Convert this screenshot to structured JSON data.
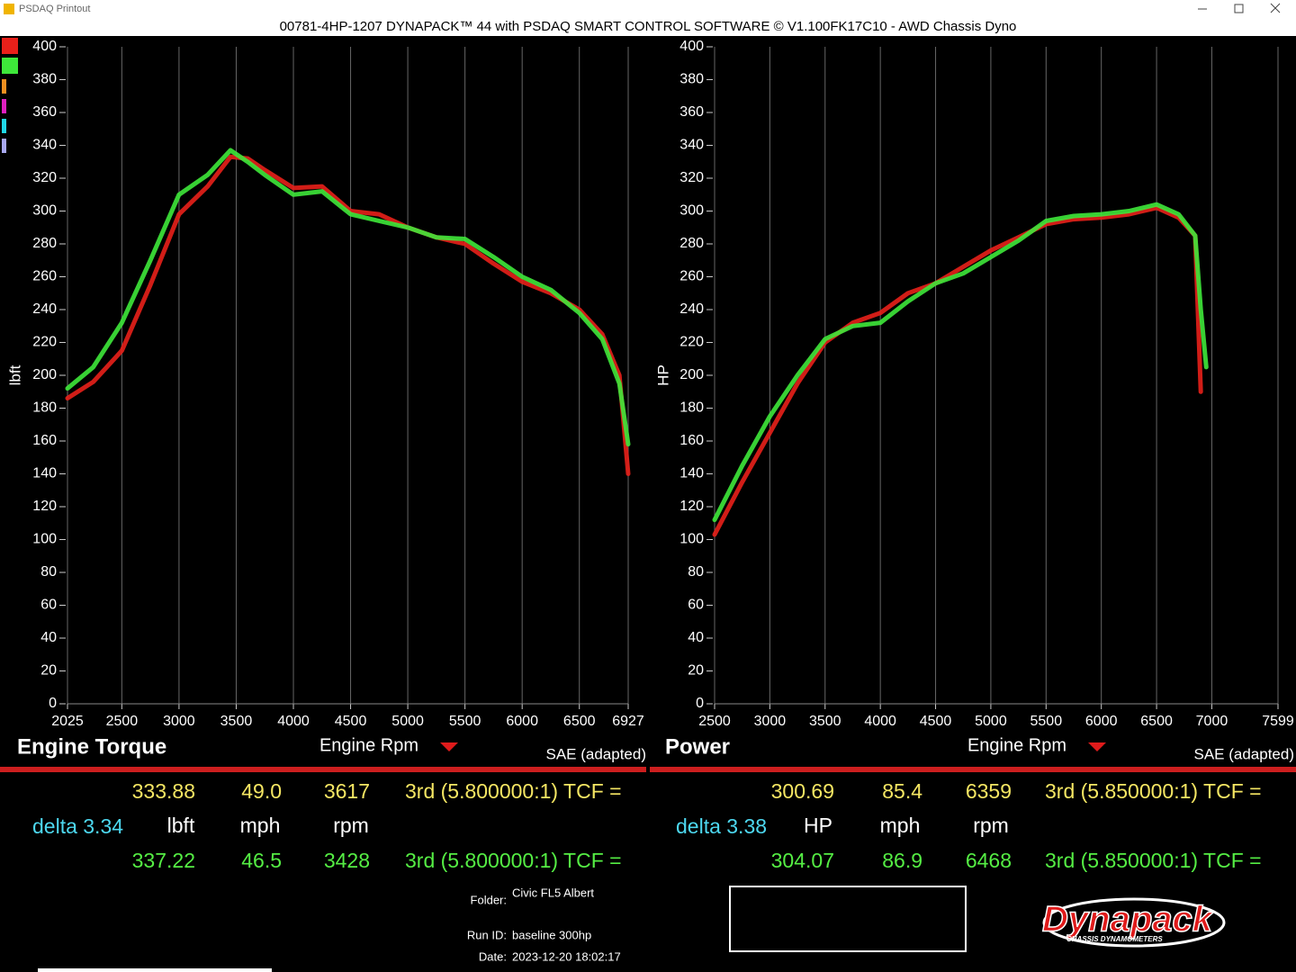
{
  "window": {
    "title": "PSDAQ Printout"
  },
  "header": "00781-4HP-1207 DYNAPACK™ 44 with PSDAQ SMART CONTROL SOFTWARE © V1.100FK17C10 - AWD Chassis Dyno",
  "chart_data": [
    {
      "type": "line",
      "title": "Engine Torque",
      "xlabel": "Engine Rpm",
      "ylabel": "lbft",
      "note": "SAE (adapted)",
      "x": [
        2025,
        2250,
        2500,
        2750,
        3000,
        3250,
        3450,
        3600,
        3750,
        4000,
        4250,
        4500,
        4750,
        5000,
        5250,
        5500,
        5750,
        6000,
        6250,
        6500,
        6700,
        6850,
        6927
      ],
      "xlim": [
        2025,
        6927
      ],
      "xticks": [
        2025,
        2500,
        3000,
        3500,
        4000,
        4500,
        5000,
        5500,
        6000,
        6500,
        6927
      ],
      "ylim": [
        0,
        400
      ],
      "yticks": [
        0,
        20,
        40,
        60,
        80,
        100,
        120,
        140,
        160,
        180,
        200,
        220,
        240,
        260,
        280,
        300,
        320,
        340,
        360,
        380,
        400
      ],
      "grid": true,
      "series": [
        {
          "color": "#e8201a",
          "values": [
            186,
            196,
            215,
            255,
            298,
            315,
            333,
            332,
            325,
            314,
            315,
            300,
            298,
            290,
            284,
            280,
            268,
            257,
            250,
            240,
            225,
            200,
            140
          ]
        },
        {
          "color": "#3ee83a",
          "values": [
            192,
            205,
            232,
            270,
            310,
            322,
            337,
            330,
            322,
            310,
            312,
            298,
            294,
            290,
            284,
            283,
            272,
            260,
            252,
            238,
            222,
            195,
            158
          ]
        }
      ]
    },
    {
      "type": "line",
      "title": "Power",
      "xlabel": "Engine Rpm",
      "ylabel": "HP",
      "note": "SAE (adapted)",
      "x": [
        2500,
        2750,
        3000,
        3250,
        3500,
        3750,
        4000,
        4250,
        4500,
        4750,
        5000,
        5250,
        5500,
        5750,
        6000,
        6250,
        6500,
        6700,
        6850,
        6900,
        6950
      ],
      "xlim": [
        2500,
        7599
      ],
      "xticks": [
        2500,
        3000,
        3500,
        4000,
        4500,
        5000,
        5500,
        6000,
        6500,
        7000,
        7599
      ],
      "ylim": [
        0,
        400
      ],
      "yticks": [
        0,
        20,
        40,
        60,
        80,
        100,
        120,
        140,
        160,
        180,
        200,
        220,
        240,
        260,
        280,
        300,
        320,
        340,
        360,
        380,
        400
      ],
      "grid": true,
      "series": [
        {
          "color": "#e8201a",
          "values": [
            103,
            135,
            165,
            195,
            220,
            232,
            238,
            250,
            256,
            266,
            276,
            284,
            292,
            295,
            296,
            298,
            302,
            296,
            285,
            190,
            null
          ]
        },
        {
          "color": "#3ee83a",
          "values": [
            112,
            145,
            175,
            200,
            222,
            230,
            232,
            245,
            256,
            262,
            272,
            282,
            294,
            297,
            298,
            300,
            304,
            298,
            285,
            240,
            205
          ]
        }
      ]
    }
  ],
  "readouts": [
    {
      "first": {
        "values": [
          "333.88",
          "49.0",
          "3617"
        ],
        "gear": "3rd (5.800000:1) TCF ="
      },
      "delta": "delta 3.34",
      "units": [
        "lbft",
        "mph",
        "rpm"
      ],
      "second": {
        "values": [
          "337.22",
          "46.5",
          "3428"
        ],
        "gear": "3rd (5.800000:1) TCF ="
      }
    },
    {
      "first": {
        "values": [
          "300.69",
          "85.4",
          "6359"
        ],
        "gear": "3rd (5.850000:1) TCF ="
      },
      "delta": "delta 3.38",
      "units": [
        "HP",
        "mph",
        "rpm"
      ],
      "second": {
        "values": [
          "304.07",
          "86.9",
          "6468"
        ],
        "gear": "3rd (5.850000:1) TCF ="
      }
    }
  ],
  "run_info": {
    "folder_label": "Folder:",
    "folder": "Civic FL5 Albert",
    "run_id_label": "Run ID:",
    "run_id": "baseline 300hp",
    "date_label": "Date:",
    "date": "2023-12-20 18:02:17"
  },
  "logo": {
    "name": "Dynapack",
    "tagline": "CHASSIS DYNAMOMETERS"
  }
}
